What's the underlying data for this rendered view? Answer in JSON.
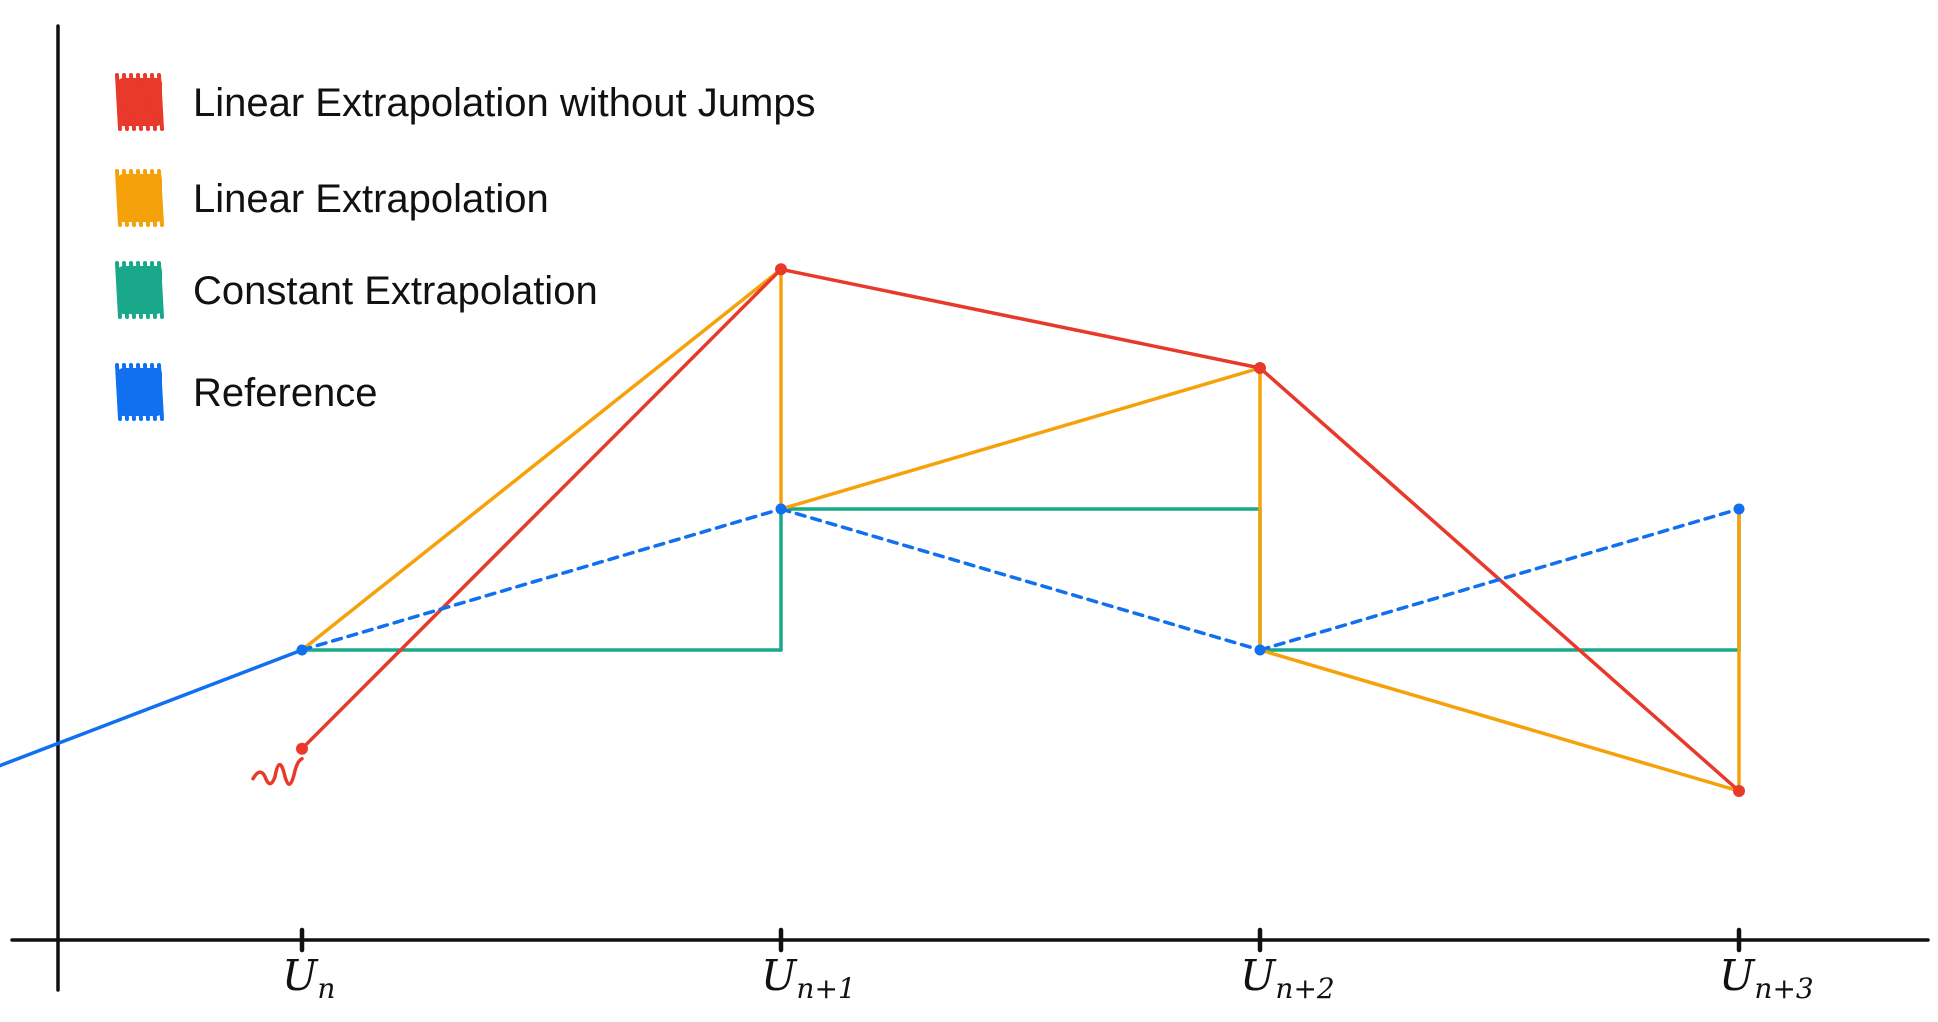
{
  "colors": {
    "red": "#e8392b",
    "orange": "#f5a20a",
    "green": "#1aa88a",
    "blue": "#1070f0",
    "axis": "#111111"
  },
  "legend": [
    {
      "label": "Linear Extrapolation without Jumps",
      "color": "#e8392b"
    },
    {
      "label": "Linear Extrapolation",
      "color": "#f5a20a"
    },
    {
      "label": "Constant Extrapolation",
      "color": "#1aa88a"
    },
    {
      "label": "Reference",
      "color": "#1070f0"
    }
  ],
  "ticks": [
    {
      "main": "U",
      "sub": "n"
    },
    {
      "main": "U",
      "sub": "n+1"
    },
    {
      "main": "U",
      "sub": "n+2"
    },
    {
      "main": "U",
      "sub": "n+3"
    }
  ],
  "chart_data": {
    "type": "line",
    "categories": [
      "Un",
      "Un+1",
      "Un+2",
      "Un+3"
    ],
    "reference_values": [
      1.0,
      2.0,
      1.0,
      2.0
    ],
    "series": [
      {
        "name": "Reference",
        "x": [
          -1.0,
          0,
          1,
          2,
          3
        ],
        "y": [
          -0.3,
          1.0,
          2.0,
          1.0,
          2.0
        ]
      },
      {
        "name": "Constant Extrapolation",
        "x": [
          0,
          1,
          1,
          2,
          2,
          3,
          3
        ],
        "y": [
          1.0,
          1.0,
          2.0,
          2.0,
          1.0,
          1.0,
          2.0
        ]
      },
      {
        "name": "Linear Extrapolation",
        "x": [
          0,
          1,
          1,
          2,
          2,
          3,
          3
        ],
        "y": [
          1.0,
          3.7,
          2.0,
          3.0,
          1.0,
          0.0,
          2.0
        ]
      },
      {
        "name": "Linear Extrapolation without Jumps",
        "x": [
          0,
          1,
          2,
          3
        ],
        "y": [
          0.3,
          3.7,
          3.0,
          0.0
        ]
      }
    ]
  }
}
